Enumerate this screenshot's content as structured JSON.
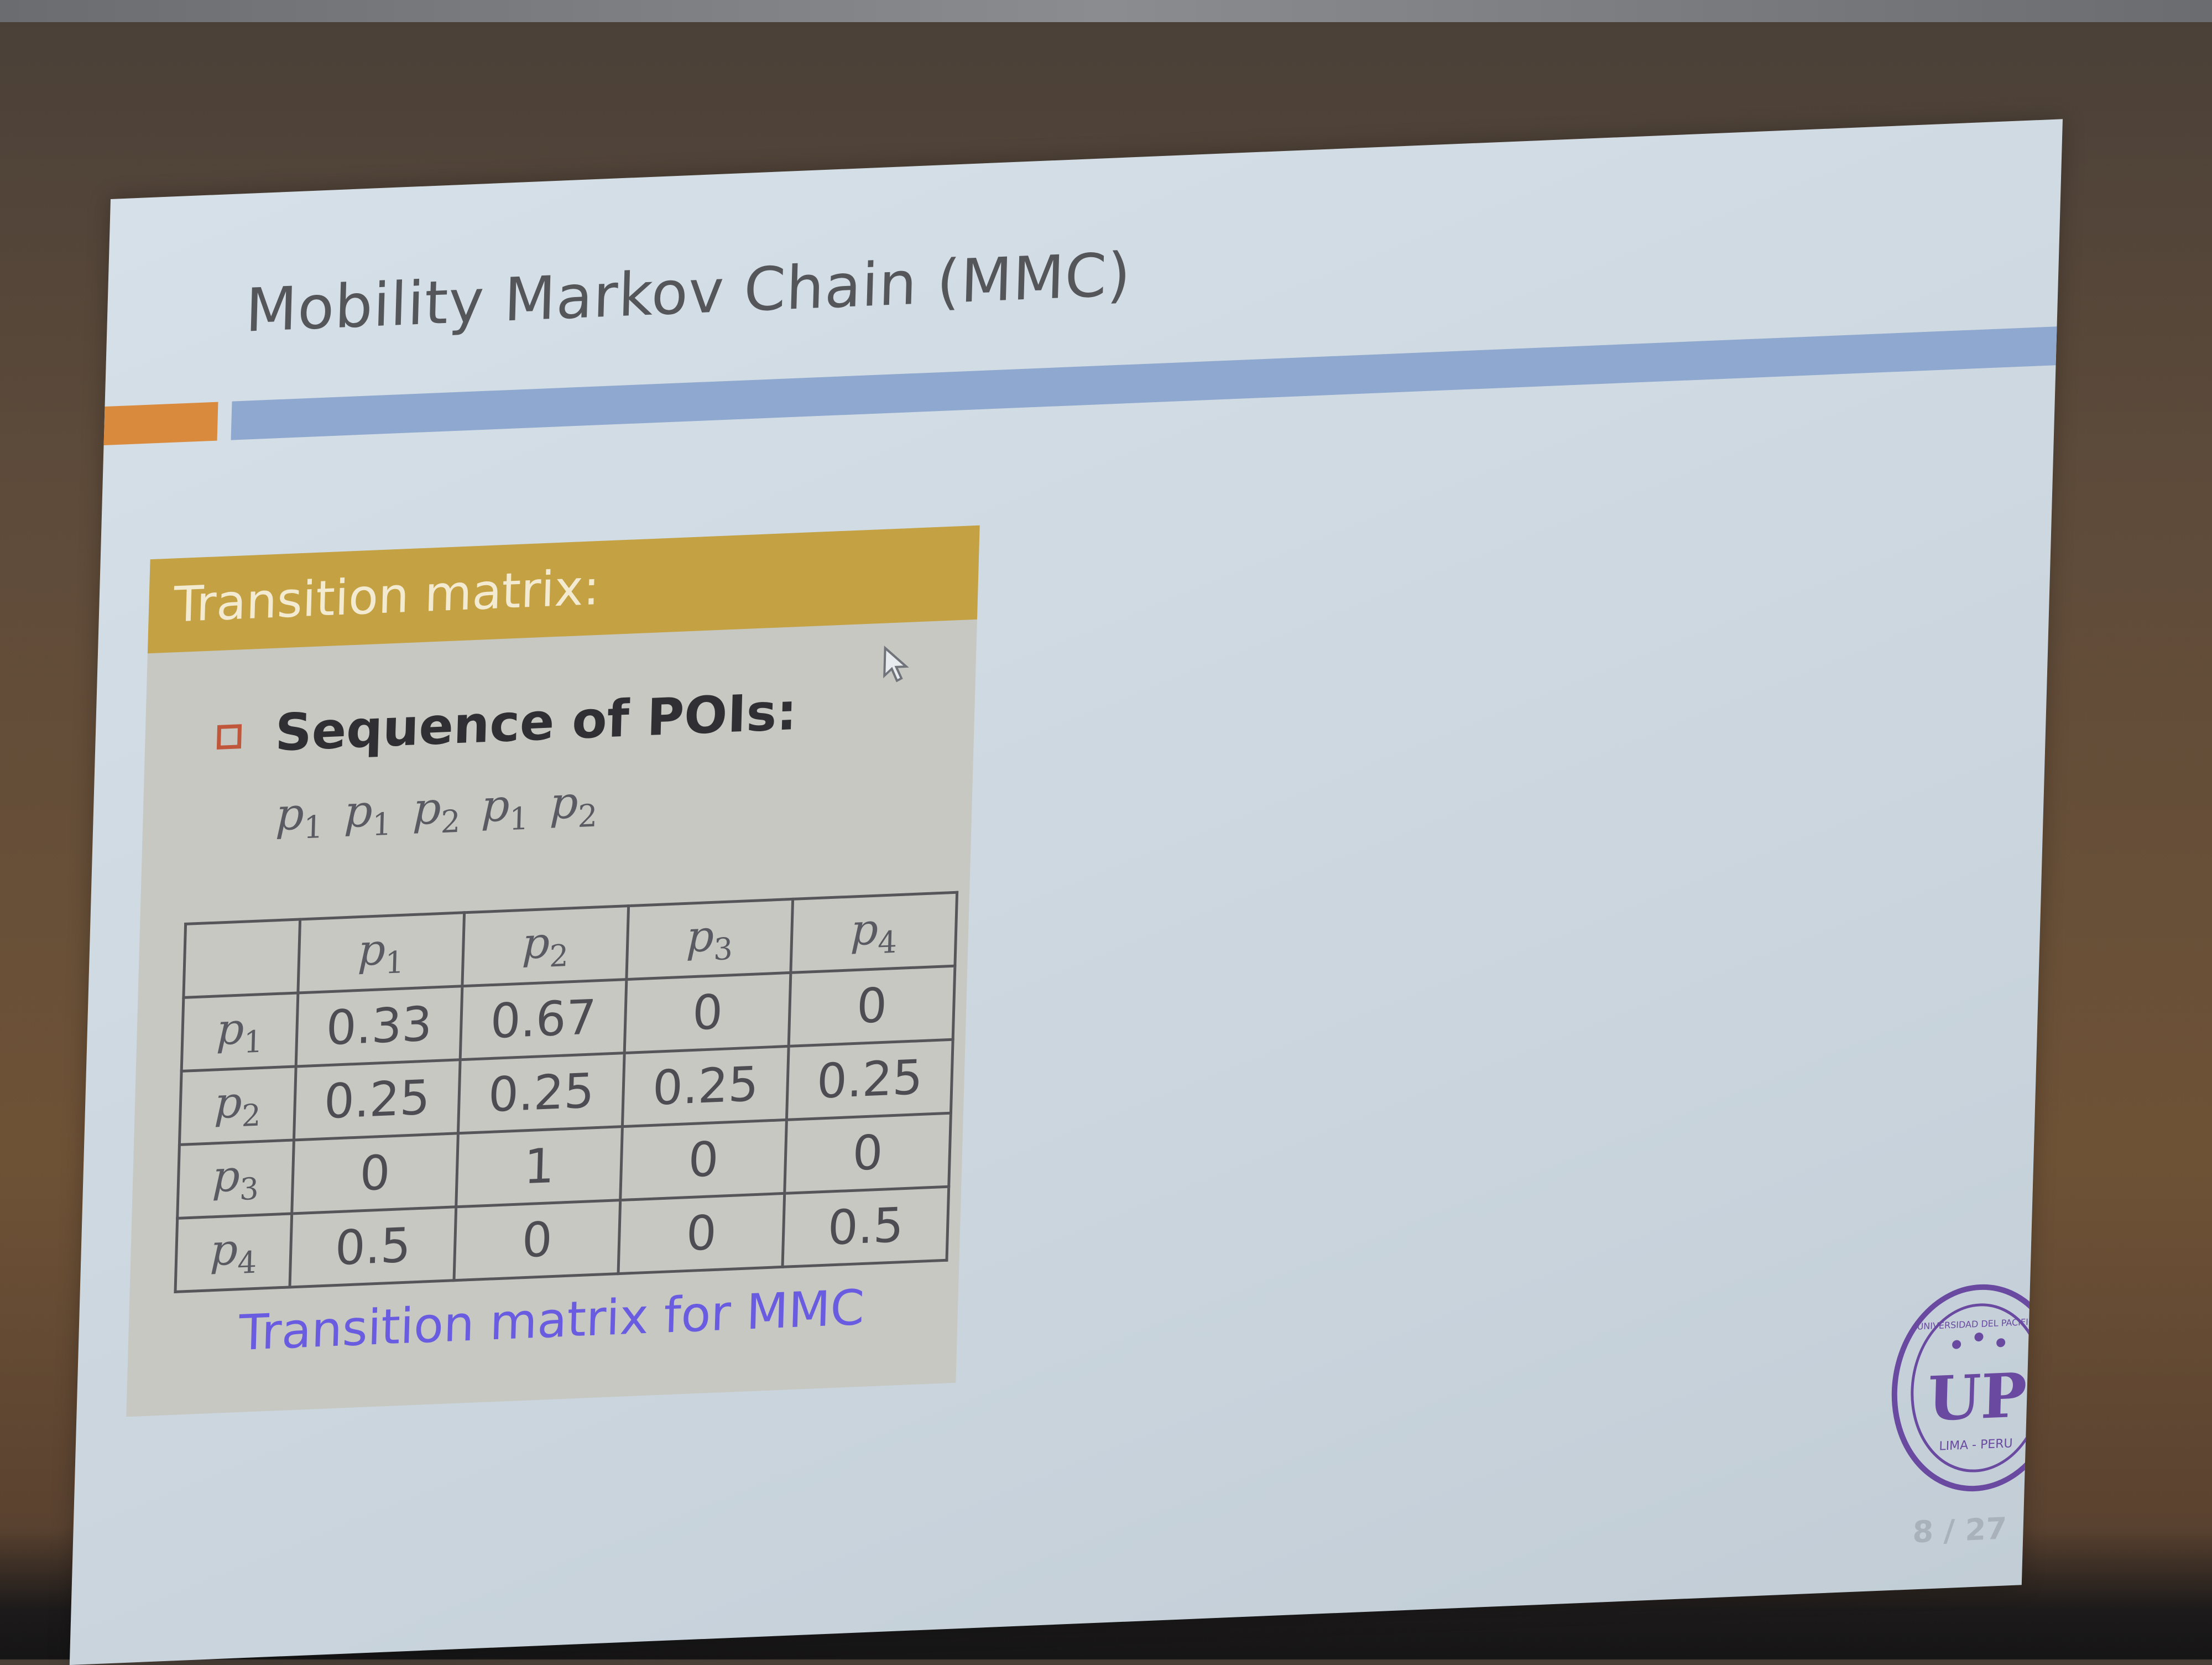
{
  "slide": {
    "title": "Mobility Markov Chain (MMC)",
    "block_title": "Transition matrix:",
    "bullet": "Sequence of POIs:",
    "sequence": [
      "p1",
      "p1",
      "p2",
      "p1",
      "p2"
    ],
    "matrix": {
      "columns": [
        "p1",
        "p2",
        "p3",
        "p4"
      ],
      "rows": [
        {
          "label": "p1",
          "cells": [
            "0.33",
            "0.67",
            "0",
            "0"
          ]
        },
        {
          "label": "p2",
          "cells": [
            "0.25",
            "0.25",
            "0.25",
            "0.25"
          ]
        },
        {
          "label": "p3",
          "cells": [
            "0",
            "1",
            "0",
            "0"
          ]
        },
        {
          "label": "p4",
          "cells": [
            "0.5",
            "0",
            "0",
            "0.5"
          ]
        }
      ]
    },
    "caption": "Transition matrix for MMC",
    "page_number": "8 / 27"
  },
  "seal": {
    "text_top": "UNIVERSIDAD DEL PACIFICO",
    "text_bottom": "LIMA - PERU",
    "monogram": "UP"
  },
  "colors": {
    "accent_orange": "#d98a3d",
    "accent_blue": "#8fa8cf",
    "block_header": "#c4a142",
    "caption": "#6a5ce0",
    "seal": "#6a4aa0"
  },
  "icons": {
    "bullet": "square-bullet-icon",
    "cursor": "mouse-pointer-icon",
    "seal": "university-seal-logo"
  }
}
